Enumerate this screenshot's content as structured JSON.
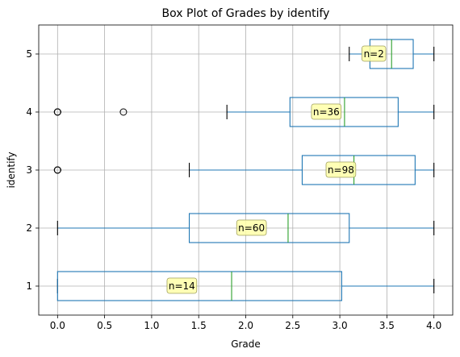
{
  "chart_data": {
    "type": "box",
    "orientation": "horizontal",
    "title": "Box Plot of Grades by identify",
    "xlabel": "Grade",
    "ylabel": "identify",
    "xlim": [
      -0.2,
      4.2
    ],
    "ylim": [
      0.5,
      5.5
    ],
    "xticks": [
      0,
      0.5,
      1,
      1.5,
      2,
      2.5,
      3,
      3.5,
      4
    ],
    "xtick_labels": [
      "0.0",
      "0.5",
      "1.0",
      "1.5",
      "2.0",
      "2.5",
      "3.0",
      "3.5",
      "4.0"
    ],
    "grid": true,
    "colors": {
      "box": "#1f77b4",
      "median": "#2ca02c",
      "annotation_bg": "#ffffa8",
      "annotation_edge": "#a0a060",
      "grid": "#b0b0b0"
    },
    "categories": [
      "1",
      "2",
      "3",
      "4",
      "5"
    ],
    "boxes": [
      {
        "category": "1",
        "whisker_low": 0.0,
        "q1": 0.0,
        "median": 1.85,
        "q3": 3.02,
        "whisker_high": 4.0,
        "outliers": [],
        "annotation": "n=14"
      },
      {
        "category": "2",
        "whisker_low": 0.0,
        "q1": 1.4,
        "median": 2.45,
        "q3": 3.1,
        "whisker_high": 4.0,
        "outliers": [],
        "annotation": "n=60"
      },
      {
        "category": "3",
        "whisker_low": 1.4,
        "q1": 2.6,
        "median": 3.15,
        "q3": 3.8,
        "whisker_high": 4.0,
        "outliers": [
          0.0,
          0.0,
          0.0
        ],
        "annotation": "n=98"
      },
      {
        "category": "4",
        "whisker_low": 1.8,
        "q1": 2.47,
        "median": 3.05,
        "q3": 3.62,
        "whisker_high": 4.0,
        "outliers": [
          0.0,
          0.0,
          0.0,
          0.7
        ],
        "annotation": "n=36"
      },
      {
        "category": "5",
        "whisker_low": 3.1,
        "q1": 3.32,
        "median": 3.55,
        "q3": 3.78,
        "whisker_high": 4.0,
        "outliers": [],
        "annotation": "n=2"
      }
    ]
  }
}
